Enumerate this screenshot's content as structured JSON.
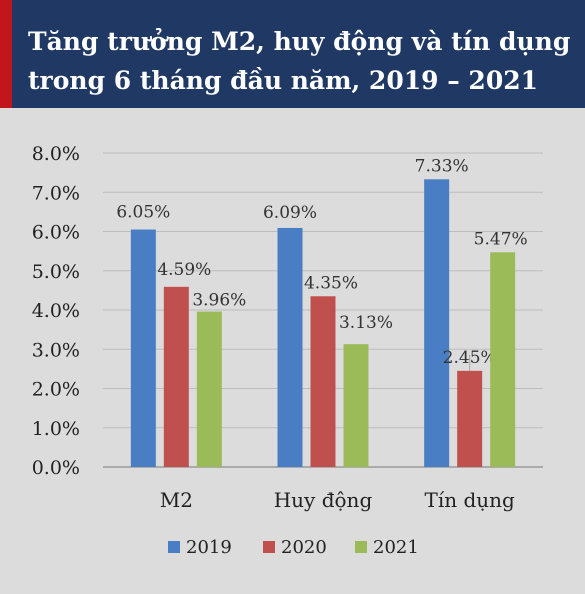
{
  "header": {
    "title_line1": "Tăng trưởng M2, huy động và tín dụng",
    "title_line2": "trong 6 tháng đầu năm, 2019 – 2021"
  },
  "colors": {
    "header_bg": "#1f3864",
    "accent": "#c0161c",
    "series_2019": "#4a7ec4",
    "series_2020": "#c0504d",
    "series_2021": "#9bbb59"
  },
  "chart_data": {
    "type": "bar",
    "title": "Tăng trưởng M2, huy động và tín dụng trong 6 tháng đầu năm, 2019 – 2021",
    "categories": [
      "M2",
      "Huy động",
      "Tín dụng"
    ],
    "series": [
      {
        "name": "2019",
        "values": [
          6.05,
          6.09,
          7.33
        ],
        "labels": [
          "6.05%",
          "6.09%",
          "7.33%"
        ]
      },
      {
        "name": "2020",
        "values": [
          4.59,
          4.35,
          2.45
        ],
        "labels": [
          "4.59%",
          "4.35%",
          "2.45%"
        ]
      },
      {
        "name": "2021",
        "values": [
          3.96,
          3.13,
          5.47
        ],
        "labels": [
          "3.96%",
          "3.13%",
          "5.47%"
        ]
      }
    ],
    "ylim": [
      0,
      8
    ],
    "yticks": [
      "0.0%",
      "1.0%",
      "2.0%",
      "3.0%",
      "4.0%",
      "5.0%",
      "6.0%",
      "7.0%",
      "8.0%"
    ],
    "grid": true,
    "legend": "bottom",
    "xlabel": "",
    "ylabel": ""
  }
}
